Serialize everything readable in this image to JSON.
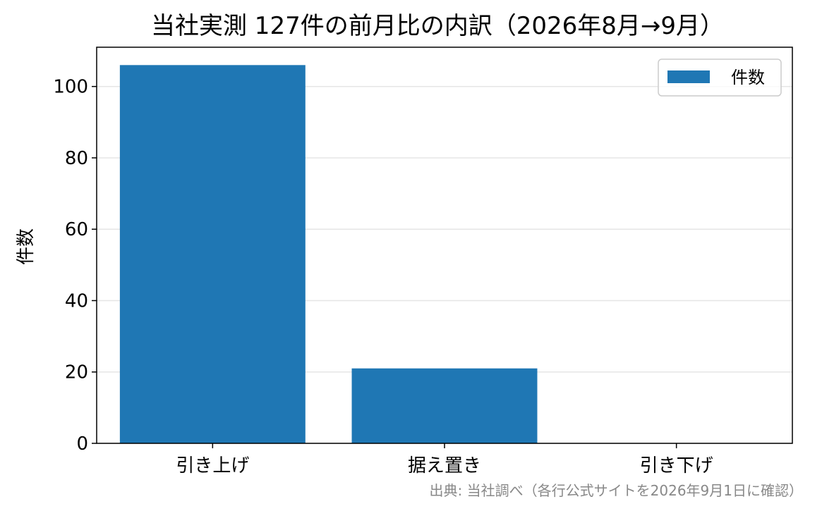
{
  "chart_data": {
    "type": "bar",
    "title": "当社実測 127件の前月比の内訳（2026年8月→9月）",
    "xlabel": "",
    "ylabel": "件数",
    "categories": [
      "引き上げ",
      "据え置き",
      "引き下げ"
    ],
    "series": [
      {
        "name": "件数",
        "values": [
          106,
          21,
          0
        ]
      }
    ],
    "ylim": [
      0,
      111
    ],
    "yticks": [
      0,
      20,
      40,
      60,
      80,
      100
    ],
    "grid": "horizontal",
    "legend": "top-right",
    "bar_color": "#1f77b4",
    "source": "出典: 当社調べ（各行公式サイトを2026年9月1日に確認）"
  }
}
